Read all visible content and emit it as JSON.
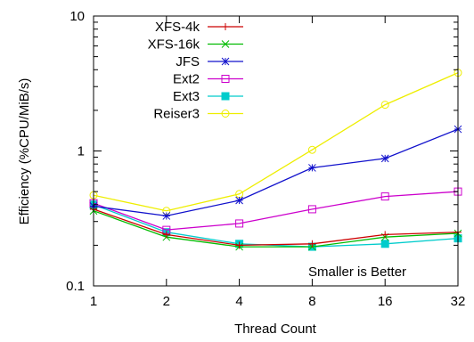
{
  "chart_data": {
    "type": "line",
    "title": "",
    "xlabel": "Thread Count",
    "ylabel": "Efficiency (%CPU/MiB/s)",
    "x_scale": "log2",
    "y_scale": "log10",
    "x": [
      1,
      2,
      4,
      8,
      16,
      32
    ],
    "x_tick_labels": [
      "1",
      "2",
      "4",
      "8",
      "16",
      "32"
    ],
    "y_ticks": [
      0.1,
      1,
      10
    ],
    "y_tick_labels": [
      "0.1",
      "1",
      "10"
    ],
    "ylim": [
      0.1,
      10
    ],
    "grid": false,
    "legend_position": "top-left",
    "annotation": "Smaller is Better",
    "series": [
      {
        "name": "XFS-4k",
        "color": "#cc0000",
        "marker": "plus",
        "values": [
          0.37,
          0.24,
          0.2,
          0.205,
          0.24,
          0.25
        ]
      },
      {
        "name": "XFS-16k",
        "color": "#00bb00",
        "marker": "cross",
        "values": [
          0.36,
          0.23,
          0.195,
          0.195,
          0.23,
          0.245
        ]
      },
      {
        "name": "JFS",
        "color": "#1111cc",
        "marker": "star",
        "values": [
          0.39,
          0.33,
          0.43,
          0.75,
          0.88,
          1.45
        ]
      },
      {
        "name": "Ext2",
        "color": "#cc00cc",
        "marker": "square-open",
        "values": [
          0.41,
          0.26,
          0.29,
          0.37,
          0.46,
          0.5
        ]
      },
      {
        "name": "Ext3",
        "color": "#00cccc",
        "marker": "square-filled",
        "values": [
          0.4,
          0.25,
          0.205,
          0.195,
          0.205,
          0.225
        ]
      },
      {
        "name": "Reiser3",
        "color": "#eeee00",
        "marker": "circle-open",
        "values": [
          0.47,
          0.36,
          0.48,
          1.02,
          2.2,
          3.8
        ]
      }
    ]
  }
}
